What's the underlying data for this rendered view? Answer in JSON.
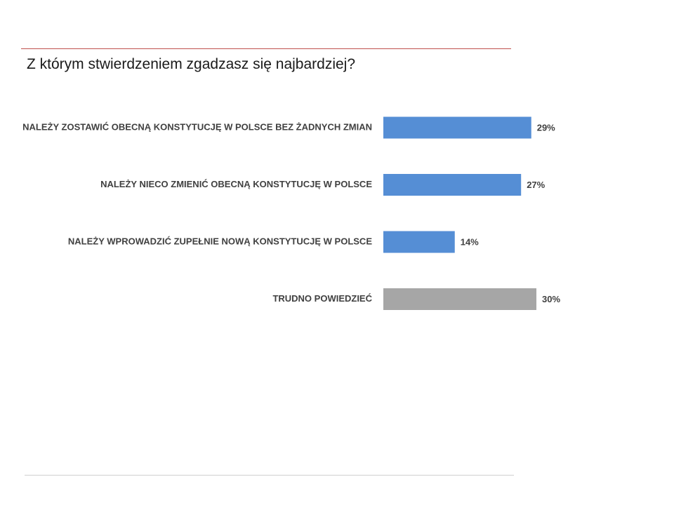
{
  "question": "Z którym stwierdzeniem zgadzasz się najbardziej?",
  "chart_data": {
    "type": "bar",
    "orientation": "horizontal",
    "categories": [
      "NALEŻY ZOSTAWIĆ OBECNĄ KONSTYTUCJĘ W POLSCE BEZ ŻADNYCH ZMIAN",
      "NALEŻY NIECO ZMIENIĆ OBECNĄ KONSTYTUCJĘ W POLSCE",
      "NALEŻY WPROWADZIĆ ZUPEŁNIE NOWĄ KONSTYTUCJĘ W POLSCE",
      "TRUDNO POWIEDZIEĆ"
    ],
    "values": [
      29,
      27,
      14,
      30
    ],
    "value_labels": [
      "29%",
      "27%",
      "14%",
      "30%"
    ],
    "bar_colors": [
      "#558ed5",
      "#558ed5",
      "#558ed5",
      "#a6a6a6"
    ],
    "title": "Z którym stwierdzeniem zgadzasz się najbardziej?",
    "xlim": [
      0,
      30
    ],
    "grid": false,
    "legend": "none"
  }
}
